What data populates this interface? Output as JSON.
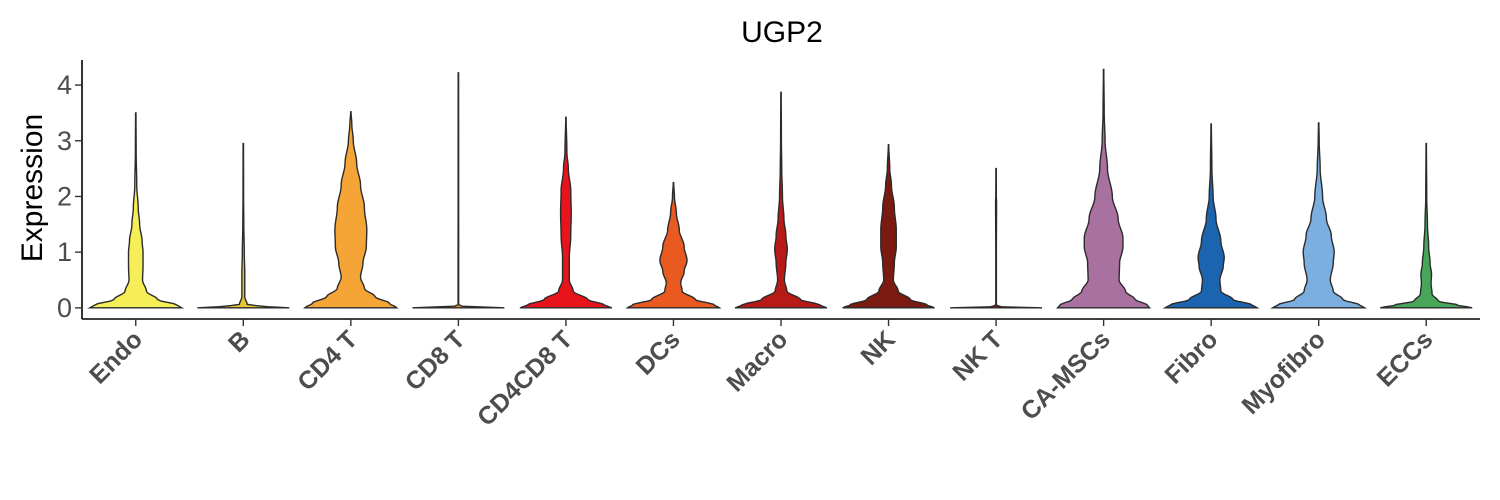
{
  "chart_data": {
    "type": "violin",
    "title": "UGP2",
    "xlabel": "",
    "ylabel": "Expression",
    "ylim": [
      -0.2,
      4.45
    ],
    "yticks": [
      0,
      1,
      2,
      3,
      4
    ],
    "grid": false,
    "legend": "none",
    "categories": [
      "Endo",
      "B",
      "CD4 T",
      "CD8 T",
      "CD4CD8 T",
      "DCs",
      "Macro",
      "NK",
      "NK T",
      "CA-MSCs",
      "Fibro",
      "Myofibro",
      "ECCs"
    ],
    "colors": [
      "#F5EE56",
      "#E8C832",
      "#F5A535",
      "#F08E2A",
      "#E8141C",
      "#E85A20",
      "#B81A18",
      "#7A1A10",
      "#7A1A10",
      "#A9719F",
      "#1A64B0",
      "#7AAFE0",
      "#47A65A"
    ],
    "series": [
      {
        "name": "Endo",
        "max": 3.5,
        "profile": [
          [
            0,
            0.95
          ],
          [
            0.05,
            0.85
          ],
          [
            0.15,
            0.45
          ],
          [
            0.3,
            0.22
          ],
          [
            0.5,
            0.14
          ],
          [
            0.75,
            0.15
          ],
          [
            1.0,
            0.15
          ],
          [
            1.2,
            0.13
          ],
          [
            1.5,
            0.08
          ],
          [
            1.8,
            0.05
          ],
          [
            2.2,
            0.02
          ],
          [
            2.8,
            0.008
          ],
          [
            3.5,
            0.004
          ]
        ]
      },
      {
        "name": "B",
        "max": 2.95,
        "profile": [
          [
            0,
            0.95
          ],
          [
            0.02,
            0.5
          ],
          [
            0.06,
            0.08
          ],
          [
            0.2,
            0.03
          ],
          [
            0.6,
            0.03
          ],
          [
            1.0,
            0.02
          ],
          [
            1.5,
            0.01
          ],
          [
            2.0,
            0.006
          ],
          [
            2.95,
            0.004
          ]
        ]
      },
      {
        "name": "CD4 T",
        "max": 3.52,
        "profile": [
          [
            0,
            0.95
          ],
          [
            0.08,
            0.8
          ],
          [
            0.2,
            0.5
          ],
          [
            0.35,
            0.28
          ],
          [
            0.55,
            0.2
          ],
          [
            0.8,
            0.25
          ],
          [
            1.1,
            0.32
          ],
          [
            1.4,
            0.33
          ],
          [
            1.8,
            0.28
          ],
          [
            2.2,
            0.2
          ],
          [
            2.6,
            0.12
          ],
          [
            3.0,
            0.05
          ],
          [
            3.3,
            0.02
          ],
          [
            3.52,
            0.004
          ]
        ]
      },
      {
        "name": "CD8 T",
        "max": 4.22,
        "profile": [
          [
            0,
            0.95
          ],
          [
            0.02,
            0.1
          ],
          [
            0.05,
            0.006
          ],
          [
            1.0,
            0.006
          ],
          [
            2.0,
            0.005
          ],
          [
            3.0,
            0.005
          ],
          [
            4.22,
            0.004
          ]
        ]
      },
      {
        "name": "CD4CD8 T",
        "max": 3.42,
        "profile": [
          [
            0,
            0.95
          ],
          [
            0.05,
            0.8
          ],
          [
            0.15,
            0.45
          ],
          [
            0.3,
            0.15
          ],
          [
            0.5,
            0.07
          ],
          [
            0.9,
            0.07
          ],
          [
            1.3,
            0.1
          ],
          [
            1.7,
            0.11
          ],
          [
            2.1,
            0.1
          ],
          [
            2.5,
            0.05
          ],
          [
            2.8,
            0.02
          ],
          [
            3.42,
            0.004
          ]
        ]
      },
      {
        "name": "DCs",
        "max": 2.25,
        "profile": [
          [
            0,
            0.95
          ],
          [
            0.05,
            0.85
          ],
          [
            0.15,
            0.45
          ],
          [
            0.3,
            0.18
          ],
          [
            0.45,
            0.15
          ],
          [
            0.65,
            0.22
          ],
          [
            0.85,
            0.28
          ],
          [
            1.1,
            0.22
          ],
          [
            1.4,
            0.12
          ],
          [
            1.7,
            0.06
          ],
          [
            2.0,
            0.02
          ],
          [
            2.25,
            0.004
          ]
        ]
      },
      {
        "name": "Macro",
        "max": 3.87,
        "profile": [
          [
            0,
            0.95
          ],
          [
            0.05,
            0.8
          ],
          [
            0.15,
            0.4
          ],
          [
            0.3,
            0.12
          ],
          [
            0.5,
            0.07
          ],
          [
            0.8,
            0.1
          ],
          [
            1.05,
            0.13
          ],
          [
            1.3,
            0.1
          ],
          [
            1.6,
            0.06
          ],
          [
            2.0,
            0.03
          ],
          [
            2.5,
            0.015
          ],
          [
            3.0,
            0.008
          ],
          [
            3.87,
            0.004
          ]
        ]
      },
      {
        "name": "NK",
        "max": 2.93,
        "profile": [
          [
            0,
            0.95
          ],
          [
            0.05,
            0.8
          ],
          [
            0.15,
            0.45
          ],
          [
            0.3,
            0.2
          ],
          [
            0.5,
            0.1
          ],
          [
            0.8,
            0.12
          ],
          [
            1.1,
            0.16
          ],
          [
            1.4,
            0.16
          ],
          [
            1.8,
            0.12
          ],
          [
            2.2,
            0.06
          ],
          [
            2.5,
            0.025
          ],
          [
            2.93,
            0.004
          ]
        ]
      },
      {
        "name": "NK T",
        "max": 2.5,
        "profile": [
          [
            0,
            0.95
          ],
          [
            0.02,
            0.1
          ],
          [
            0.05,
            0.006
          ],
          [
            1.0,
            0.006
          ],
          [
            1.9,
            0.01
          ],
          [
            2.0,
            0.005
          ],
          [
            2.5,
            0.004
          ]
        ]
      },
      {
        "name": "CA-MSCs",
        "max": 4.28,
        "profile": [
          [
            0,
            0.95
          ],
          [
            0.05,
            0.9
          ],
          [
            0.15,
            0.65
          ],
          [
            0.3,
            0.45
          ],
          [
            0.5,
            0.32
          ],
          [
            0.8,
            0.33
          ],
          [
            1.1,
            0.4
          ],
          [
            1.25,
            0.4
          ],
          [
            1.6,
            0.3
          ],
          [
            2.0,
            0.18
          ],
          [
            2.5,
            0.08
          ],
          [
            3.0,
            0.03
          ],
          [
            3.5,
            0.012
          ],
          [
            4.28,
            0.004
          ]
        ]
      },
      {
        "name": "Fibro",
        "max": 3.3,
        "profile": [
          [
            0,
            0.95
          ],
          [
            0.05,
            0.85
          ],
          [
            0.15,
            0.45
          ],
          [
            0.3,
            0.2
          ],
          [
            0.5,
            0.18
          ],
          [
            0.75,
            0.25
          ],
          [
            0.9,
            0.27
          ],
          [
            1.2,
            0.2
          ],
          [
            1.6,
            0.1
          ],
          [
            2.0,
            0.04
          ],
          [
            2.5,
            0.015
          ],
          [
            3.3,
            0.004
          ]
        ]
      },
      {
        "name": "Myofibro",
        "max": 3.32,
        "profile": [
          [
            0,
            0.95
          ],
          [
            0.05,
            0.85
          ],
          [
            0.15,
            0.5
          ],
          [
            0.3,
            0.3
          ],
          [
            0.5,
            0.24
          ],
          [
            0.8,
            0.3
          ],
          [
            1.0,
            0.32
          ],
          [
            1.3,
            0.26
          ],
          [
            1.6,
            0.16
          ],
          [
            2.0,
            0.08
          ],
          [
            2.5,
            0.03
          ],
          [
            3.0,
            0.01
          ],
          [
            3.32,
            0.004
          ]
        ]
      },
      {
        "name": "ECCs",
        "max": 2.95,
        "profile": [
          [
            0,
            0.95
          ],
          [
            0.05,
            0.65
          ],
          [
            0.12,
            0.25
          ],
          [
            0.25,
            0.12
          ],
          [
            0.45,
            0.1
          ],
          [
            0.6,
            0.11
          ],
          [
            0.8,
            0.08
          ],
          [
            1.1,
            0.05
          ],
          [
            1.5,
            0.025
          ],
          [
            2.0,
            0.01
          ],
          [
            2.95,
            0.004
          ]
        ]
      }
    ]
  }
}
